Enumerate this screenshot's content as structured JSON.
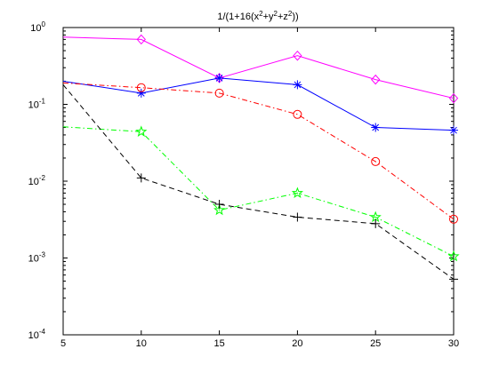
{
  "chart_data": {
    "type": "line",
    "title": {
      "parts": [
        {
          "t": "1/(1+16(x"
        },
        {
          "t": "2",
          "sup": true
        },
        {
          "t": "+y"
        },
        {
          "t": "2",
          "sup": true
        },
        {
          "t": "+z"
        },
        {
          "t": "2",
          "sup": true
        },
        {
          "t": "))"
        }
      ]
    },
    "xlabel": "",
    "ylabel": "",
    "x": [
      5,
      10,
      15,
      20,
      25,
      30
    ],
    "xlim": [
      5,
      30
    ],
    "xticks": [
      5,
      10,
      15,
      20,
      25,
      30
    ],
    "xtick_labels": [
      "5",
      "10",
      "15",
      "20",
      "25",
      "30"
    ],
    "y_scale": "log",
    "ylim": [
      0.0001,
      1
    ],
    "yticks": [
      {
        "value": 1,
        "base": "10",
        "exp": "0"
      },
      {
        "value": 0.1,
        "base": "10",
        "exp": "-1"
      },
      {
        "value": 0.01,
        "base": "10",
        "exp": "-2"
      },
      {
        "value": 0.001,
        "base": "10",
        "exp": "-3"
      },
      {
        "value": 0.0001,
        "base": "10",
        "exp": "-4"
      }
    ],
    "grid": false,
    "legend": "none",
    "series": [
      {
        "id": "magenta-diamond",
        "color": "#ff00ff",
        "dash": "solid",
        "marker": "diamond",
        "values": [
          0.75,
          0.7,
          0.22,
          0.43,
          0.21,
          0.12
        ]
      },
      {
        "id": "blue-star",
        "color": "#0000ff",
        "dash": "solid",
        "marker": "asterisk",
        "values": [
          0.2,
          0.14,
          0.22,
          0.18,
          0.05,
          0.046
        ]
      },
      {
        "id": "red-circle",
        "color": "#ff0000",
        "dash": "dashdot",
        "marker": "circle",
        "values": [
          0.19,
          0.165,
          0.14,
          0.074,
          0.018,
          0.0032
        ]
      },
      {
        "id": "green-pentagram",
        "color": "#00ff00",
        "dash": "dashdot",
        "marker": "pentagram",
        "values": [
          0.051,
          0.044,
          0.0042,
          0.007,
          0.0034,
          0.00105
        ]
      },
      {
        "id": "black-plus",
        "color": "#000000",
        "dash": "dashed",
        "marker": "plus",
        "values": [
          0.18,
          0.011,
          0.005,
          0.0034,
          0.0028,
          0.00053
        ]
      }
    ]
  }
}
